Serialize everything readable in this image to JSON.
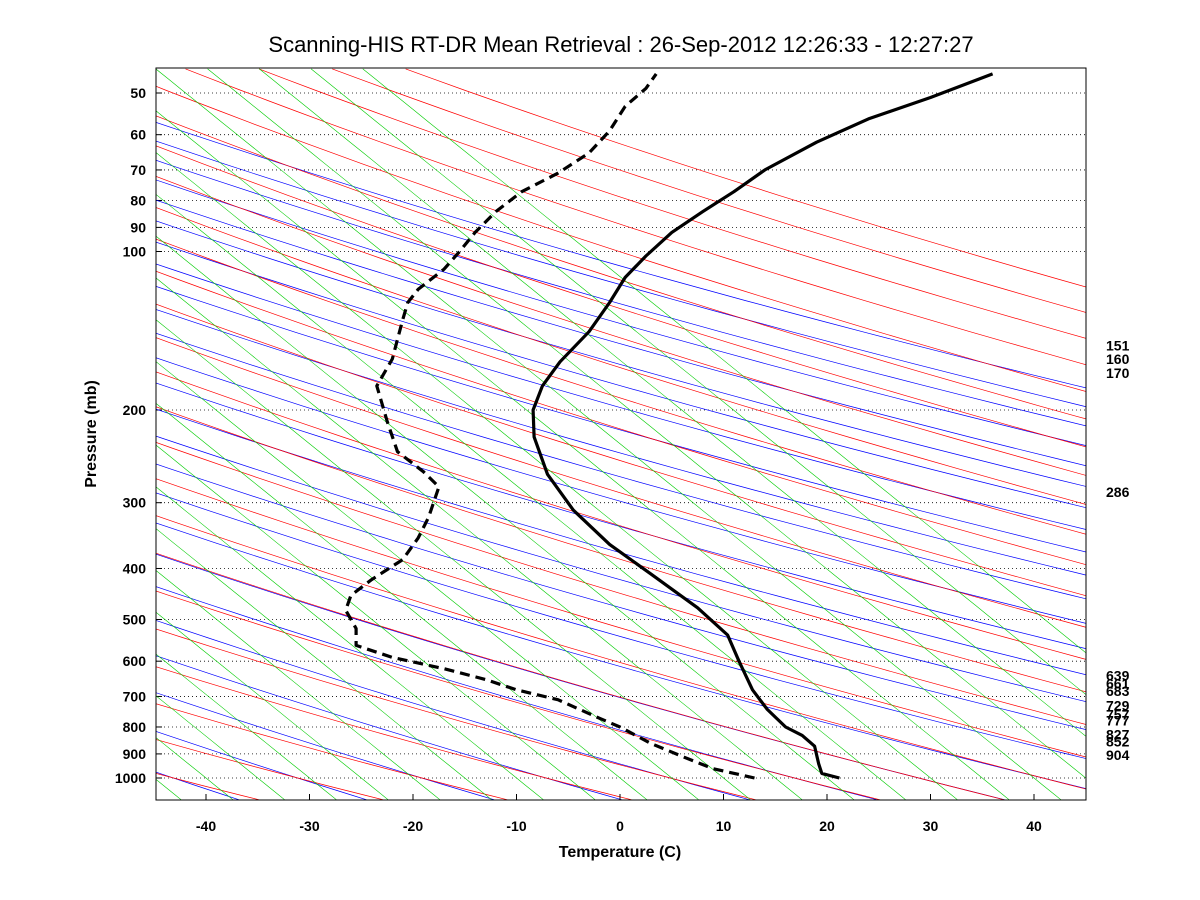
{
  "chart_data": {
    "type": "line",
    "title": "Scanning-HIS RT-DR Mean Retrieval : 26-Sep-2012 12:26:33 - 12:27:27",
    "xlabel": "Temperature (C)",
    "ylabel": "Pressure (mb)",
    "xlim": [
      -45,
      45
    ],
    "ylim": [
      1100,
      45
    ],
    "y_scale": "log",
    "x_ticks": [
      "-40",
      "-30",
      "-20",
      "-10",
      "0",
      "10",
      "20",
      "30",
      "40"
    ],
    "y_ticks": [
      "50",
      "60",
      "70",
      "80",
      "90",
      "100",
      "200",
      "300",
      "400",
      "500",
      "600",
      "700",
      "800",
      "900",
      "1000"
    ],
    "right_labels": [
      "151",
      "160",
      "170",
      "286",
      "639",
      "661",
      "683",
      "729",
      "757",
      "777",
      "827",
      "852",
      "904"
    ],
    "grid": "dotted horizontal at pressure ticks",
    "background_lines": {
      "dry_adiabats_color": "#0000ff",
      "moist_adiabats_color": "#ff0000",
      "mixing_ratio_color": "#00cc00"
    },
    "series": [
      {
        "style": "solid",
        "color": "#000000",
        "points": [
          [
            21.2,
            1000
          ],
          [
            19.5,
            980
          ],
          [
            19.2,
            940
          ],
          [
            18.8,
            870
          ],
          [
            17.6,
            830
          ],
          [
            16.0,
            800
          ],
          [
            14.2,
            740
          ],
          [
            12.8,
            680
          ],
          [
            11.5,
            600
          ],
          [
            10.4,
            535
          ],
          [
            7.5,
            475
          ],
          [
            3.0,
            410
          ],
          [
            -1.0,
            360
          ],
          [
            -4.5,
            310
          ],
          [
            -7.0,
            265
          ],
          [
            -8.3,
            225
          ],
          [
            -8.4,
            200
          ],
          [
            -7.5,
            180
          ],
          [
            -5.8,
            162
          ],
          [
            -3.0,
            142
          ],
          [
            -1.0,
            125
          ],
          [
            0.5,
            112
          ],
          [
            2.5,
            102
          ],
          [
            5.0,
            92
          ],
          [
            8.0,
            84
          ],
          [
            11.0,
            77
          ],
          [
            14.0,
            70
          ],
          [
            19.0,
            62
          ],
          [
            24.0,
            56
          ],
          [
            30.0,
            51
          ],
          [
            36.0,
            46
          ]
        ]
      },
      {
        "style": "dashed",
        "color": "#000000",
        "points": [
          [
            13.0,
            1000
          ],
          [
            9.0,
            960
          ],
          [
            6.0,
            910
          ],
          [
            3.0,
            860
          ],
          [
            0.0,
            800
          ],
          [
            -2.0,
            770
          ],
          [
            -6.0,
            710
          ],
          [
            -10.0,
            680
          ],
          [
            -13.0,
            650
          ],
          [
            -17.0,
            620
          ],
          [
            -22.0,
            590
          ],
          [
            -25.5,
            560
          ],
          [
            -25.5,
            520
          ],
          [
            -26.5,
            480
          ],
          [
            -26.0,
            450
          ],
          [
            -24.0,
            420
          ],
          [
            -21.0,
            385
          ],
          [
            -19.5,
            350
          ],
          [
            -18.5,
            320
          ],
          [
            -17.5,
            280
          ],
          [
            -19.0,
            262
          ],
          [
            -21.5,
            240
          ],
          [
            -22.5,
            210
          ],
          [
            -23.5,
            180
          ],
          [
            -22.0,
            160
          ],
          [
            -21.0,
            135
          ],
          [
            -20.5,
            125
          ],
          [
            -19.5,
            118
          ],
          [
            -17.0,
            108
          ],
          [
            -15.5,
            100
          ],
          [
            -14.0,
            92
          ],
          [
            -12.0,
            84
          ],
          [
            -9.5,
            77
          ],
          [
            -6.0,
            71
          ],
          [
            -3.0,
            65
          ],
          [
            -1.0,
            59
          ],
          [
            0.5,
            53
          ],
          [
            2.5,
            49
          ],
          [
            3.5,
            46
          ]
        ]
      }
    ]
  }
}
